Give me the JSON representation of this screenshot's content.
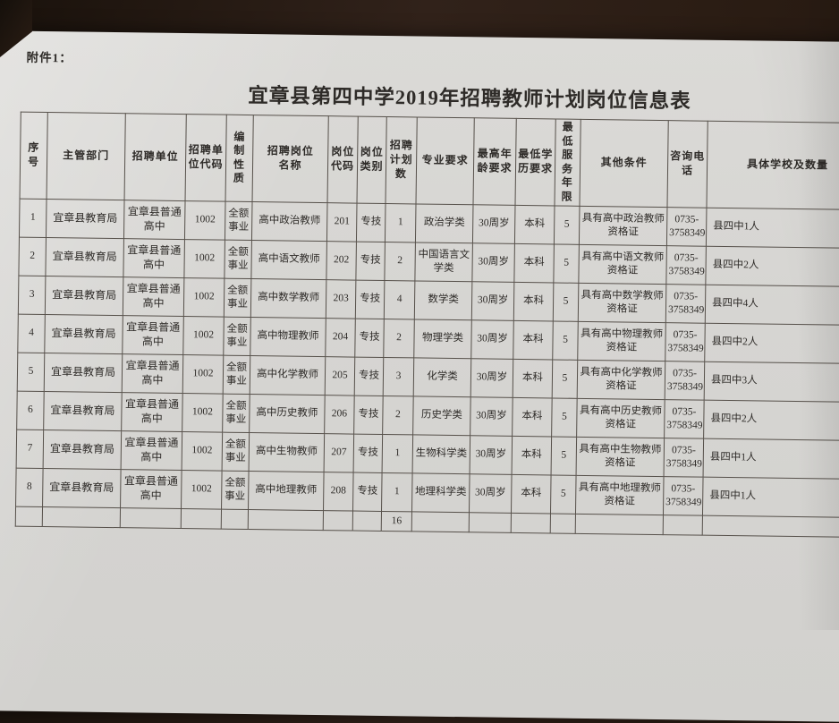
{
  "colors": {
    "paper": "#d7d6d3",
    "surface": "#2a1c13",
    "ink": "#2e2b28"
  },
  "page": {
    "attachment_label": "附件1：",
    "title": "宜章县第四中学2019年招聘教师计划岗位信息表"
  },
  "table": {
    "columns": [
      {
        "key": "seq",
        "label": "序号"
      },
      {
        "key": "dept",
        "label": "主管部门"
      },
      {
        "key": "unit",
        "label": "招聘单位"
      },
      {
        "key": "unit_code",
        "label": "招聘单\n位代码"
      },
      {
        "key": "nature",
        "label": "编制\n性质"
      },
      {
        "key": "position",
        "label": "招聘岗位\n名称"
      },
      {
        "key": "pos_code",
        "label": "岗位\n代码"
      },
      {
        "key": "pos_type",
        "label": "岗位\n类别"
      },
      {
        "key": "plan",
        "label": "招聘\n计划\n数"
      },
      {
        "key": "major",
        "label": "专业要求"
      },
      {
        "key": "max_age",
        "label": "最高年\n龄要求"
      },
      {
        "key": "min_edu",
        "label": "最低学\n历要求"
      },
      {
        "key": "min_service",
        "label": "最低\n服务\n年限"
      },
      {
        "key": "other",
        "label": "其他条件"
      },
      {
        "key": "phone",
        "label": "咨询电\n话"
      },
      {
        "key": "school",
        "label": "具体学校及数量"
      }
    ],
    "rows": [
      {
        "seq": "1",
        "dept": "宜章县教育局",
        "unit": "宜章县普通高中",
        "unit_code": "1002",
        "nature": "全额事业",
        "position": "高中政治教师",
        "pos_code": "201",
        "pos_type": "专技",
        "plan": "1",
        "major": "政治学类",
        "max_age": "30周岁",
        "min_edu": "本科",
        "min_service": "5",
        "other": "具有高中政治教师资格证",
        "phone": "0735-3758349",
        "school": "县四中1人"
      },
      {
        "seq": "2",
        "dept": "宜章县教育局",
        "unit": "宜章县普通高中",
        "unit_code": "1002",
        "nature": "全额事业",
        "position": "高中语文教师",
        "pos_code": "202",
        "pos_type": "专技",
        "plan": "2",
        "major": "中国语言文学类",
        "max_age": "30周岁",
        "min_edu": "本科",
        "min_service": "5",
        "other": "具有高中语文教师资格证",
        "phone": "0735-3758349",
        "school": "县四中2人"
      },
      {
        "seq": "3",
        "dept": "宜章县教育局",
        "unit": "宜章县普通高中",
        "unit_code": "1002",
        "nature": "全额事业",
        "position": "高中数学教师",
        "pos_code": "203",
        "pos_type": "专技",
        "plan": "4",
        "major": "数学类",
        "max_age": "30周岁",
        "min_edu": "本科",
        "min_service": "5",
        "other": "具有高中数学教师资格证",
        "phone": "0735-3758349",
        "school": "县四中4人"
      },
      {
        "seq": "4",
        "dept": "宜章县教育局",
        "unit": "宜章县普通高中",
        "unit_code": "1002",
        "nature": "全额事业",
        "position": "高中物理教师",
        "pos_code": "204",
        "pos_type": "专技",
        "plan": "2",
        "major": "物理学类",
        "max_age": "30周岁",
        "min_edu": "本科",
        "min_service": "5",
        "other": "具有高中物理教师资格证",
        "phone": "0735-3758349",
        "school": "县四中2人"
      },
      {
        "seq": "5",
        "dept": "宜章县教育局",
        "unit": "宜章县普通高中",
        "unit_code": "1002",
        "nature": "全额事业",
        "position": "高中化学教师",
        "pos_code": "205",
        "pos_type": "专技",
        "plan": "3",
        "major": "化学类",
        "max_age": "30周岁",
        "min_edu": "本科",
        "min_service": "5",
        "other": "具有高中化学教师资格证",
        "phone": "0735-3758349",
        "school": "县四中3人"
      },
      {
        "seq": "6",
        "dept": "宜章县教育局",
        "unit": "宜章县普通高中",
        "unit_code": "1002",
        "nature": "全额事业",
        "position": "高中历史教师",
        "pos_code": "206",
        "pos_type": "专技",
        "plan": "2",
        "major": "历史学类",
        "max_age": "30周岁",
        "min_edu": "本科",
        "min_service": "5",
        "other": "具有高中历史教师资格证",
        "phone": "0735-3758349",
        "school": "县四中2人"
      },
      {
        "seq": "7",
        "dept": "宜章县教育局",
        "unit": "宜章县普通高中",
        "unit_code": "1002",
        "nature": "全额事业",
        "position": "高中生物教师",
        "pos_code": "207",
        "pos_type": "专技",
        "plan": "1",
        "major": "生物科学类",
        "max_age": "30周岁",
        "min_edu": "本科",
        "min_service": "5",
        "other": "具有高中生物教师资格证",
        "phone": "0735-3758349",
        "school": "县四中1人"
      },
      {
        "seq": "8",
        "dept": "宜章县教育局",
        "unit": "宜章县普通高中",
        "unit_code": "1002",
        "nature": "全额事业",
        "position": "高中地理教师",
        "pos_code": "208",
        "pos_type": "专技",
        "plan": "1",
        "major": "地理科学类",
        "max_age": "30周岁",
        "min_edu": "本科",
        "min_service": "5",
        "other": "具有高中地理教师资格证",
        "phone": "0735-3758349",
        "school": "县四中1人"
      }
    ],
    "total_row": {
      "plan": "16"
    }
  }
}
